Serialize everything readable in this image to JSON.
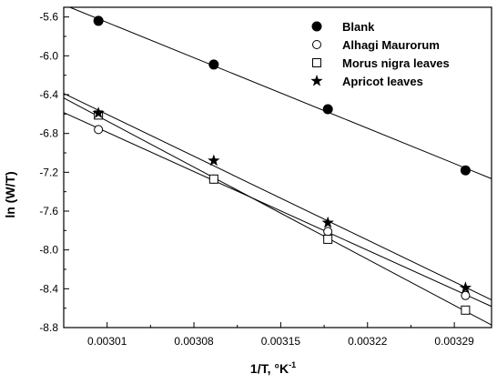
{
  "chart_data": {
    "type": "scatter",
    "xlabel": "1/T, °K",
    "xlabel_sup": "-1",
    "ylabel": "ln (W/T)",
    "xlim": [
      0.002975,
      0.00332
    ],
    "ylim": [
      -8.8,
      -5.5
    ],
    "xticks": [
      0.00301,
      0.00308,
      0.00315,
      0.00322,
      0.00329
    ],
    "xtick_labels": [
      "0.00301",
      "0.00308",
      "0.00315",
      "0.00322",
      "0.00329"
    ],
    "yticks": [
      -5.6,
      -6.0,
      -6.4,
      -6.8,
      -7.2,
      -7.6,
      -8.0,
      -8.4,
      -8.8
    ],
    "ytick_labels": [
      "-5.6",
      "-6.0",
      "-6.4",
      "-6.8",
      "-7.2",
      "-7.6",
      "-8.0",
      "-8.4",
      "-8.8"
    ],
    "grid": false,
    "legend_position": "top-right",
    "x": [
      0.003003,
      0.003096,
      0.003188,
      0.003299
    ],
    "series": [
      {
        "name": "Blank",
        "marker": "filled-circle",
        "values": [
          -5.64,
          -6.09,
          -6.55,
          -7.18
        ]
      },
      {
        "name": "Alhagi Maurorum",
        "marker": "open-circle",
        "values": [
          -6.76,
          -7.27,
          -7.81,
          -8.47
        ]
      },
      {
        "name": "Morus nigra leaves",
        "marker": "open-square",
        "values": [
          -6.61,
          -7.27,
          -7.89,
          -8.62
        ]
      },
      {
        "name": "Apricot leaves",
        "marker": "star",
        "values": [
          -6.59,
          -7.08,
          -7.72,
          -8.39
        ]
      }
    ]
  }
}
